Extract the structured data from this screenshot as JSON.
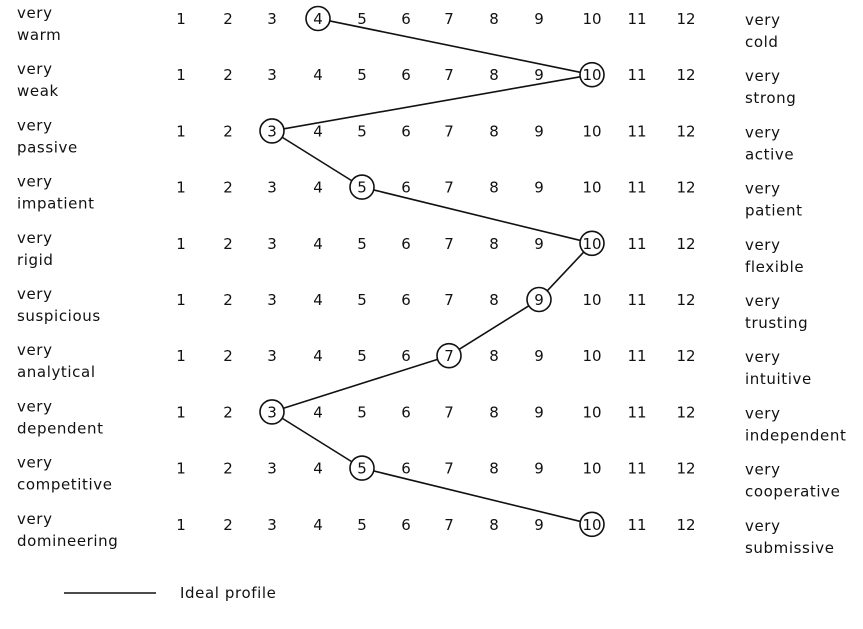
{
  "chart_data": {
    "type": "line",
    "scale": [
      1,
      2,
      3,
      4,
      5,
      6,
      7,
      8,
      9,
      10,
      11,
      12
    ],
    "rows": [
      {
        "left": [
          "very",
          "warm"
        ],
        "right": [
          "very",
          "cold"
        ],
        "value": 4
      },
      {
        "left": [
          "very",
          "weak"
        ],
        "right": [
          "very",
          "strong"
        ],
        "value": 10
      },
      {
        "left": [
          "very",
          "passive"
        ],
        "right": [
          "very",
          "active"
        ],
        "value": 3
      },
      {
        "left": [
          "very",
          "impatient"
        ],
        "right": [
          "very",
          "patient"
        ],
        "value": 5
      },
      {
        "left": [
          "very",
          "rigid"
        ],
        "right": [
          "very",
          "flexible"
        ],
        "value": 10
      },
      {
        "left": [
          "very",
          "suspicious"
        ],
        "right": [
          "very",
          "trusting"
        ],
        "value": 9
      },
      {
        "left": [
          "very",
          "analytical"
        ],
        "right": [
          "very",
          "intuitive"
        ],
        "value": 7
      },
      {
        "left": [
          "very",
          "dependent"
        ],
        "right": [
          "very",
          "independent"
        ],
        "value": 3
      },
      {
        "left": [
          "very",
          "competitive"
        ],
        "right": [
          "very",
          "cooperative"
        ],
        "value": 5
      },
      {
        "left": [
          "very",
          "domineering"
        ],
        "right": [
          "very",
          "submissive"
        ],
        "value": 10
      }
    ],
    "series": [
      {
        "name": "Ideal profile"
      }
    ],
    "legend_position": "bottom-left",
    "line_color": "#111111"
  }
}
